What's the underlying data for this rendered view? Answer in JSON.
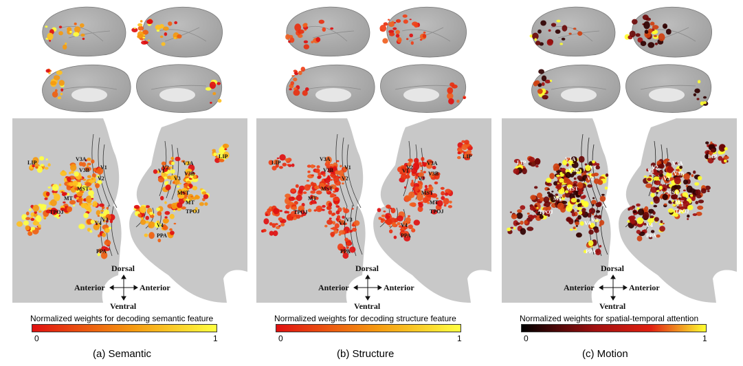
{
  "colors": {
    "cortex": "#c8c8c8",
    "cortex_shade": "#9d9d9d",
    "hot_low": "#e01010",
    "hot_mid": "#f59a10",
    "hot_high": "#ffff40",
    "motion_low": "#000000",
    "motion_mid": "#a01010",
    "motion_high": "#ffff30"
  },
  "compass": {
    "dorsal": "Dorsal",
    "ventral": "Ventral",
    "anterior_left": "Anterior",
    "anterior_right": "Anterior"
  },
  "panels": [
    {
      "id": "semantic",
      "caption": "(a) Semantic",
      "colorbar_title": "Normalized weights for decoding semantic feature",
      "colorbar_min": "0",
      "colorbar_max": "1",
      "colormap": "hot",
      "left_labels": [
        "LIP",
        "V3A",
        "V3B",
        "V1",
        "V2",
        "MST",
        "MT",
        "TPOJ",
        "V4",
        "V3",
        "PPA"
      ],
      "right_labels": [
        "LIP",
        "V2",
        "V3A",
        "V1",
        "V3B",
        "V3",
        "MST",
        "MT",
        "TPOJ",
        "V4",
        "PPA"
      ]
    },
    {
      "id": "structure",
      "caption": "(b) Structure",
      "colorbar_title": "Normalized weights for decoding structure feature",
      "colorbar_min": "0",
      "colorbar_max": "1",
      "colormap": "hot",
      "left_labels": [
        "LIP",
        "V3A",
        "V3B",
        "V1",
        "V2",
        "MST",
        "MT",
        "TPOJ",
        "V4",
        "V3",
        "PPA"
      ],
      "right_labels": [
        "LIP",
        "V2",
        "V3A",
        "V1",
        "V3B",
        "V3",
        "MST",
        "MT",
        "TPOJ",
        "V4",
        "PPA"
      ]
    },
    {
      "id": "motion",
      "caption": "(c) Motion",
      "colorbar_title": "Normalized weights for spatial-temporal attention",
      "colorbar_min": "0",
      "colorbar_max": "1",
      "colormap": "motion",
      "left_labels": [
        "LIP",
        "V3A",
        "V3B",
        "V1",
        "V2",
        "MST",
        "MT",
        "TPOJ",
        "V4",
        "V3",
        "PPA"
      ],
      "right_labels": [
        "LIP",
        "V2",
        "V3A",
        "V1",
        "V3B",
        "V3",
        "MST",
        "MT",
        "TPOJ",
        "V4",
        "PPA"
      ]
    }
  ]
}
